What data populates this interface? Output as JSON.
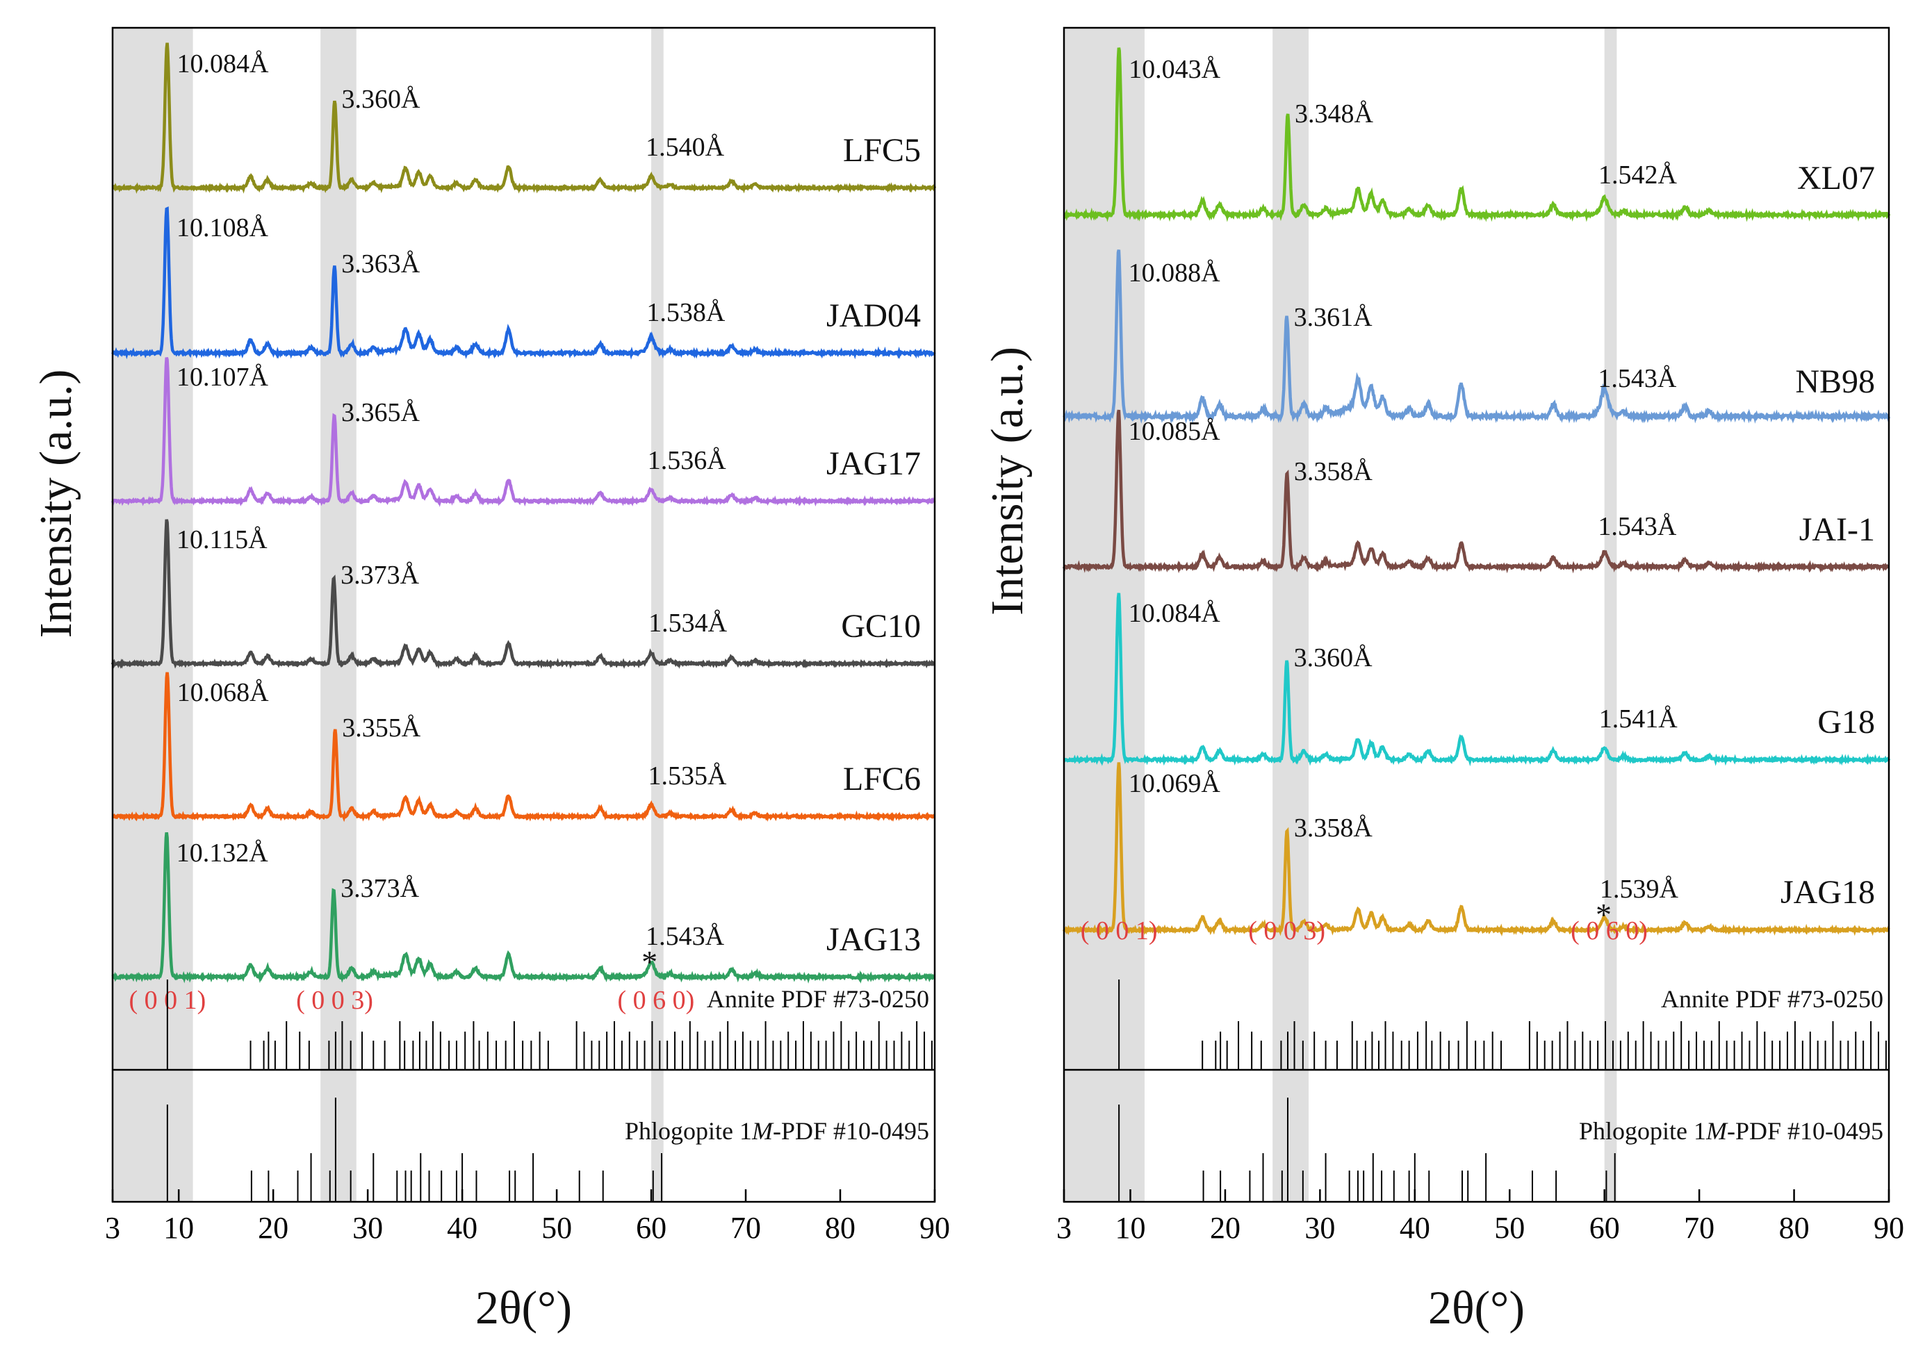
{
  "chart_data": [
    {
      "type": "line",
      "panel": "left",
      "ylabel": "Intensity (a.u.)",
      "xlabel": "2θ(°)",
      "xlim": [
        3,
        90
      ],
      "x_ticks": [
        3,
        10,
        20,
        30,
        40,
        50,
        60,
        70,
        80,
        90
      ],
      "x_tick_labels": [
        "3",
        "10",
        "20",
        "30",
        "40",
        "50",
        "60",
        "70",
        "80",
        "90"
      ],
      "shaded_ranges": [
        [
          3,
          11.5
        ],
        [
          25,
          28.8
        ],
        [
          60,
          61.3
        ]
      ],
      "hkl_labels": [
        {
          "label": "( 0 0 1)",
          "x": 8.8
        },
        {
          "label": "( 0 0 3)",
          "x": 26.5
        },
        {
          "label": "( 0 6 0)",
          "x": 60.5
        }
      ],
      "series": [
        {
          "name": "LFC5",
          "color": "#8c8c1a",
          "peak1": 8.77,
          "peak3": 26.5,
          "peak060": 60.0,
          "d001": "10.084Å",
          "d003": "3.360Å",
          "d060": "1.540Å",
          "baseline": 0.07,
          "bump": 0.05,
          "marker": ""
        },
        {
          "name": "JAD04",
          "color": "#1f66e0",
          "peak1": 8.74,
          "peak3": 26.48,
          "peak060": 60.1,
          "d001": "10.108Å",
          "d003": "3.363Å",
          "d060": "1.538Å",
          "baseline": 0.07,
          "bump": 0.12,
          "marker": ""
        },
        {
          "name": "JAG17",
          "color": "#b070e0",
          "peak1": 8.74,
          "peak3": 26.46,
          "peak060": 60.2,
          "d001": "10.107Å",
          "d003": "3.365Å",
          "d060": "1.536Å",
          "baseline": 0.07,
          "bump": 0.05,
          "marker": ""
        },
        {
          "name": "GC10",
          "color": "#4a4a4a",
          "peak1": 8.74,
          "peak3": 26.4,
          "peak060": 60.3,
          "d001": "10.115Å",
          "d003": "3.373Å",
          "d060": "1.534Å",
          "baseline": 0.07,
          "bump": 0.03,
          "marker": ""
        },
        {
          "name": "LFC6",
          "color": "#f06010",
          "peak1": 8.78,
          "peak3": 26.55,
          "peak060": 60.25,
          "d001": "10.068Å",
          "d003": "3.355Å",
          "d060": "1.535Å",
          "baseline": 0.07,
          "bump": 0.05,
          "marker": ""
        },
        {
          "name": "JAG13",
          "color": "#30a060",
          "peak1": 8.72,
          "peak3": 26.4,
          "peak060": 60.0,
          "d001": "10.132Å",
          "d003": "3.373Å",
          "d060": "1.543Å",
          "baseline": 0.07,
          "bump": 0.1,
          "marker": "*"
        }
      ],
      "references": [
        {
          "name": "Annite PDF #73-0250",
          "peaks": [
            8.8,
            17.6,
            19.0,
            19.5,
            20.2,
            21.4,
            22.8,
            23.8,
            25.9,
            26.6,
            27.3,
            28.2,
            29.4,
            30.6,
            31.8,
            33.4,
            33.9,
            34.8,
            35.5,
            36.2,
            36.9,
            37.7,
            38.6,
            39.4,
            40.3,
            41.2,
            41.8,
            42.7,
            43.6,
            44.6,
            45.5,
            46.4,
            47.3,
            48.2,
            49.1,
            52.1,
            52.9,
            53.7,
            54.5,
            55.3,
            56.1,
            56.9,
            57.7,
            58.5,
            59.3,
            60.1,
            60.9,
            61.7,
            62.5,
            63.3,
            64.1,
            64.9,
            65.7,
            66.5,
            67.3,
            68.1,
            68.9,
            69.7,
            70.5,
            71.3,
            72.1,
            72.9,
            73.7,
            74.5,
            75.3,
            76.1,
            76.9,
            77.7,
            78.5,
            79.3,
            80.1,
            80.9,
            81.7,
            82.5,
            83.3,
            84.1,
            84.9,
            85.7,
            86.5,
            87.3,
            88.1,
            88.9,
            89.7
          ]
        },
        {
          "name": "Phlogopite 1M-PDF #10-0495",
          "name_prefix": "Phlogopite 1",
          "name_italic": "M",
          "name_suffix": "-PDF #10-0495",
          "peaks": [
            8.8,
            17.7,
            19.5,
            22.6,
            24.0,
            26.0,
            26.6,
            28.2,
            30.6,
            33.1,
            34.0,
            34.6,
            35.6,
            36.5,
            37.8,
            39.4,
            40.0,
            41.5,
            45.0,
            45.6,
            47.5,
            52.4,
            54.9,
            60.2,
            61.1
          ]
        }
      ]
    },
    {
      "type": "line",
      "panel": "right",
      "ylabel": "Intensity (a.u.)",
      "xlabel": "2θ(°)",
      "xlim": [
        3,
        90
      ],
      "x_ticks": [
        3,
        10,
        20,
        30,
        40,
        50,
        60,
        70,
        80,
        90
      ],
      "x_tick_labels": [
        "3",
        "10",
        "20",
        "30",
        "40",
        "50",
        "60",
        "70",
        "80",
        "90"
      ],
      "shaded_ranges": [
        [
          3,
          11.5
        ],
        [
          25,
          28.8
        ],
        [
          60,
          61.3
        ]
      ],
      "hkl_labels": [
        {
          "label": "( 0 0 1)",
          "x": 8.8
        },
        {
          "label": "( 0 0 3)",
          "x": 26.5
        },
        {
          "label": "( 0 6 0)",
          "x": 60.5
        }
      ],
      "series": [
        {
          "name": "XL07",
          "color": "#6cbf20",
          "peak1": 8.8,
          "peak3": 26.6,
          "peak060": 59.95,
          "d001": "10.043Å",
          "d003": "3.348Å",
          "d060": "1.542Å",
          "baseline": 0.1,
          "bump": 0.1,
          "marker": ""
        },
        {
          "name": "NB98",
          "color": "#6a9ad6",
          "peak1": 8.76,
          "peak3": 26.5,
          "peak060": 59.9,
          "d001": "10.088Å",
          "d003": "3.361Å",
          "d060": "1.543Å",
          "baseline": 0.2,
          "bump": 0.25,
          "marker": ""
        },
        {
          "name": "JAI-1",
          "color": "#7a4a44",
          "peak1": 8.76,
          "peak3": 26.52,
          "peak060": 59.9,
          "d001": "10.085Å",
          "d003": "3.358Å",
          "d060": "1.543Å",
          "baseline": 0.08,
          "bump": 0.08,
          "marker": ""
        },
        {
          "name": "G18",
          "color": "#20c8c8",
          "peak1": 8.77,
          "peak3": 26.5,
          "peak060": 60.0,
          "d001": "10.084Å",
          "d003": "3.360Å",
          "d060": "1.541Å",
          "baseline": 0.05,
          "bump": 0.03,
          "marker": ""
        },
        {
          "name": "JAG18",
          "color": "#d8a020",
          "peak1": 8.78,
          "peak3": 26.52,
          "peak060": 60.1,
          "d001": "10.069Å",
          "d003": "3.358Å",
          "d060": "1.539Å",
          "baseline": 0.05,
          "bump": 0.03,
          "marker": "*"
        }
      ],
      "references": [
        {
          "name": "Annite PDF #73-0250",
          "peaks": [
            8.8,
            17.6,
            19.0,
            19.5,
            20.2,
            21.4,
            22.8,
            23.8,
            25.9,
            26.6,
            27.3,
            28.2,
            29.4,
            30.6,
            31.8,
            33.4,
            33.9,
            34.8,
            35.5,
            36.2,
            36.9,
            37.7,
            38.6,
            39.4,
            40.3,
            41.2,
            41.8,
            42.7,
            43.6,
            44.6,
            45.5,
            46.4,
            47.3,
            48.2,
            49.1,
            52.1,
            52.9,
            53.7,
            54.5,
            55.3,
            56.1,
            56.9,
            57.7,
            58.5,
            59.3,
            60.1,
            60.9,
            61.7,
            62.5,
            63.3,
            64.1,
            64.9,
            65.7,
            66.5,
            67.3,
            68.1,
            68.9,
            69.7,
            70.5,
            71.3,
            72.1,
            72.9,
            73.7,
            74.5,
            75.3,
            76.1,
            76.9,
            77.7,
            78.5,
            79.3,
            80.1,
            80.9,
            81.7,
            82.5,
            83.3,
            84.1,
            84.9,
            85.7,
            86.5,
            87.3,
            88.1,
            88.9,
            89.7
          ]
        },
        {
          "name": "Phlogopite 1M-PDF #10-0495",
          "name_prefix": "Phlogopite 1",
          "name_italic": "M",
          "name_suffix": "-PDF #10-0495",
          "peaks": [
            8.8,
            17.7,
            19.5,
            22.6,
            24.0,
            26.0,
            26.6,
            28.2,
            30.6,
            33.1,
            34.0,
            34.6,
            35.6,
            36.5,
            37.8,
            39.4,
            40.0,
            41.5,
            45.0,
            45.6,
            47.5,
            52.4,
            54.9,
            60.2,
            61.1
          ]
        }
      ]
    }
  ]
}
